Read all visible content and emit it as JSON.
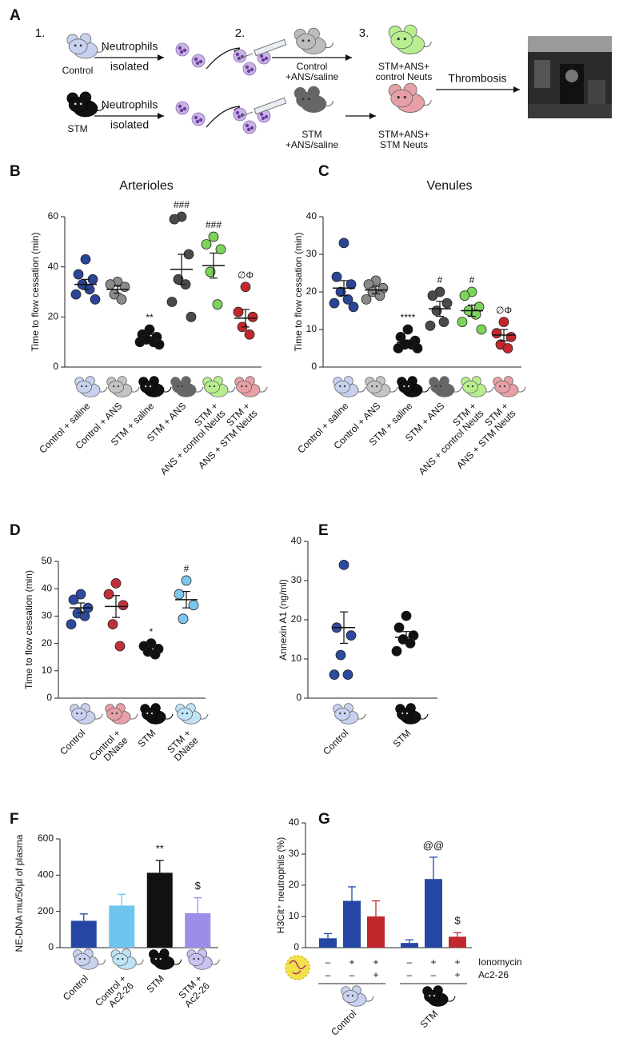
{
  "schematic": {
    "panel": "A",
    "steps": [
      "1.",
      "2.",
      "3."
    ],
    "donors": [
      "Control",
      "STM"
    ],
    "isolation": [
      "Neutrophils",
      "isolated"
    ],
    "recipients": [
      [
        "Control",
        "+ANS/saline"
      ],
      [
        "STM",
        "+ANS/saline"
      ]
    ],
    "outcomes": [
      [
        "STM+ANS+",
        "control Neuts"
      ],
      [
        "STM+ANS+",
        "STM Neuts"
      ]
    ],
    "endpoint": "Thrombosis"
  },
  "chart_data": [
    {
      "panel": "B",
      "type": "dot",
      "title": "Arterioles",
      "y_label": "Time to flow cessation (min)",
      "ylim": [
        0,
        60
      ],
      "yticks": [
        0,
        20,
        40,
        60
      ],
      "series": [
        {
          "name": "Control + saline",
          "color": "#2a4596",
          "icon_color": "#c8d2f0",
          "values": [
            43,
            37,
            35,
            33,
            31,
            29,
            27
          ],
          "mean": 33,
          "sem": 2
        },
        {
          "name": "Control + ANS",
          "color": "#8a8a8a",
          "icon_color": "#c4c4c4",
          "values": [
            34,
            33,
            32,
            29,
            27
          ],
          "mean": 31,
          "sem": 1.5
        },
        {
          "name": "STM + saline",
          "color": "#111111",
          "icon_color": "#111111",
          "values": [
            15,
            13,
            12,
            11,
            10,
            10,
            9
          ],
          "mean": 12,
          "sem": 1,
          "annotation": "**"
        },
        {
          "name": "STM + ANS",
          "color": "#4a4a4a",
          "icon_color": "#666666",
          "values": [
            60,
            59,
            45,
            35,
            33,
            26,
            20
          ],
          "mean": 39,
          "sem": 6,
          "annotation": "###"
        },
        {
          "name": [
            "STM +",
            "ANS + control Neuts"
          ],
          "color": "#7dd35a",
          "icon_color": "#b8ee8e",
          "values": [
            52,
            49,
            47,
            38,
            25
          ],
          "mean": 40.5,
          "sem": 5,
          "annotation": "###"
        },
        {
          "name": [
            "STM +",
            "ANS + STM Neuts"
          ],
          "color": "#c0282e",
          "icon_color": "#e7a0a5",
          "values": [
            32,
            22,
            20,
            16,
            13
          ],
          "mean": 19.5,
          "sem": 3.5,
          "annotation": "∅Φ"
        }
      ]
    },
    {
      "panel": "C",
      "type": "dot",
      "title": "Venules",
      "y_label": "Time to flow cessation (min)",
      "ylim": [
        0,
        40
      ],
      "yticks": [
        0,
        10,
        20,
        30,
        40
      ],
      "series": [
        {
          "name": "Control + saline",
          "color": "#2a4596",
          "icon_color": "#c8d2f0",
          "values": [
            33,
            24,
            22,
            20,
            18,
            17,
            16
          ],
          "mean": 21,
          "sem": 2
        },
        {
          "name": "Control + ANS",
          "color": "#8a8a8a",
          "icon_color": "#c4c4c4",
          "values": [
            23,
            22,
            21,
            20,
            19,
            18
          ],
          "mean": 20.5,
          "sem": 1
        },
        {
          "name": "STM + saline",
          "color": "#111111",
          "icon_color": "#111111",
          "values": [
            10,
            8,
            7,
            6,
            6,
            5,
            5
          ],
          "mean": 6.5,
          "sem": 0.7,
          "annotation": "****"
        },
        {
          "name": "STM + ANS",
          "color": "#4a4a4a",
          "icon_color": "#666666",
          "values": [
            20,
            19,
            17,
            15,
            12,
            11
          ],
          "mean": 15.5,
          "sem": 2,
          "annotation": "#"
        },
        {
          "name": [
            "STM +",
            "ANS + control Neuts"
          ],
          "color": "#7dd35a",
          "icon_color": "#b8ee8e",
          "values": [
            20,
            19,
            16,
            15,
            14,
            12,
            10
          ],
          "mean": 15,
          "sem": 1.5,
          "annotation": "#"
        },
        {
          "name": [
            "STM +",
            "ANS + STM Neuts"
          ],
          "color": "#c0282e",
          "icon_color": "#e7a0a5",
          "values": [
            12,
            9,
            8,
            6,
            5
          ],
          "mean": 8.5,
          "sem": 1.5,
          "annotation": "∅Φ"
        }
      ]
    },
    {
      "panel": "D",
      "type": "dot",
      "y_label": "Time to flow cessation (min)",
      "ylim": [
        0,
        50
      ],
      "yticks": [
        0,
        10,
        20,
        30,
        40,
        50
      ],
      "series": [
        {
          "name": "Control",
          "color": "#2e4a9e",
          "icon_color": "#c8d2f0",
          "values": [
            38,
            36,
            33,
            31,
            30,
            27
          ],
          "mean": 33,
          "sem": 1.8
        },
        {
          "name": [
            "Control +",
            "DNase"
          ],
          "color": "#c0303a",
          "icon_color": "#e7a0a5",
          "values": [
            42,
            38,
            34,
            27,
            19
          ],
          "mean": 33.5,
          "sem": 4
        },
        {
          "name": "STM",
          "color": "#111111",
          "icon_color": "#111111",
          "values": [
            20,
            19,
            18,
            17,
            16
          ],
          "mean": 18.5,
          "sem": 1,
          "annotation": "*"
        },
        {
          "name": [
            "STM +",
            "DNase"
          ],
          "color": "#7ec8f0",
          "icon_color": "#bfe3f7",
          "values": [
            43,
            38,
            34,
            29
          ],
          "mean": 36,
          "sem": 3,
          "annotation": "#"
        }
      ]
    },
    {
      "panel": "E",
      "type": "dot",
      "y_label": "Annexin A1 (ng/ml)",
      "ylim": [
        0,
        40
      ],
      "yticks": [
        0,
        10,
        20,
        30,
        40
      ],
      "series": [
        {
          "name": "Control",
          "color": "#2e4a9e",
          "icon_color": "#c8d2f0",
          "values": [
            34,
            18,
            16,
            11,
            6,
            6
          ],
          "mean": 18,
          "sem": 4
        },
        {
          "name": "STM",
          "color": "#111111",
          "icon_color": "#111111",
          "values": [
            21,
            18,
            16,
            15,
            14,
            12
          ],
          "mean": 15.5,
          "sem": 1.5
        }
      ]
    },
    {
      "panel": "F",
      "type": "bar",
      "y_label": "NE-DNA mu/50µl of plasma",
      "ylim": [
        0,
        600
      ],
      "yticks": [
        0,
        200,
        400,
        600
      ],
      "categories": [
        "Control",
        [
          "Control +",
          "Ac2-26"
        ],
        "STM",
        [
          "STM +",
          "Ac2-26"
        ]
      ],
      "values": [
        148,
        232,
        413,
        190
      ],
      "errors": [
        38,
        62,
        68,
        85
      ],
      "annotations": [
        null,
        null,
        "**",
        "$"
      ],
      "colors": [
        "#2546a4",
        "#6ec6f0",
        "#111111",
        "#9b8ee8"
      ],
      "icon_colors": [
        "#c8d2f0",
        "#bfe3f7",
        "#111111",
        "#c9c3f3"
      ]
    },
    {
      "panel": "G",
      "type": "bar",
      "y_label": "H3Cit⁺ neutrophils (%)",
      "ylim": [
        0,
        40
      ],
      "yticks": [
        0,
        10,
        20,
        30,
        40
      ],
      "values": [
        3,
        15,
        10,
        1.5,
        22,
        3.5
      ],
      "errors": [
        1.5,
        4.5,
        5,
        1,
        7,
        1.3
      ],
      "annotations": [
        null,
        null,
        null,
        null,
        "@@",
        "$"
      ],
      "colors": [
        "#2546a4",
        "#2546a4",
        "#c0282e",
        "#2546a4",
        "#2546a4",
        "#c0282e"
      ],
      "conditions": [
        {
          "name": "Ionomycin",
          "values": [
            "–",
            "+",
            "+",
            "–",
            "+",
            "+"
          ]
        },
        {
          "name": "Ac2-26",
          "values": [
            "–",
            "–",
            "+",
            "–",
            "–",
            "+"
          ]
        }
      ],
      "groups": [
        "Control",
        "STM"
      ],
      "group_icon_colors": [
        "#c8d2f0",
        "#111111"
      ]
    }
  ]
}
